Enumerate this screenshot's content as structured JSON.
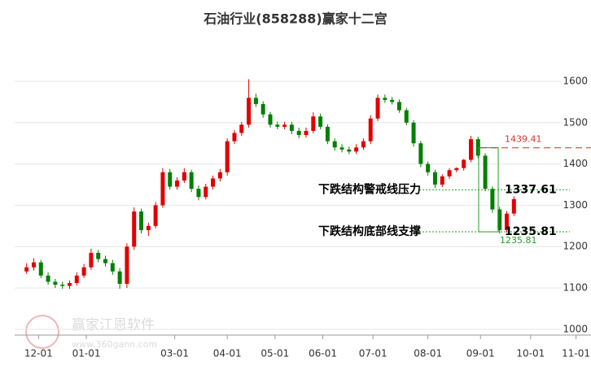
{
  "chart_data": {
    "type": "candlestick",
    "title": "石油行业(858288)赢家十二宫",
    "x": [
      0,
      3,
      6,
      9,
      12,
      15,
      18,
      21,
      24,
      27,
      30,
      33,
      36,
      39,
      42,
      45,
      48,
      51,
      54,
      57,
      60,
      63,
      66,
      69,
      72,
      75,
      78,
      81,
      84,
      87,
      90,
      93,
      96,
      99,
      102,
      105,
      108,
      111,
      114,
      117,
      120,
      123,
      126,
      129,
      132,
      135,
      138,
      141,
      144,
      147,
      150,
      153,
      156,
      159,
      162,
      165,
      168,
      171,
      174,
      177,
      180,
      183,
      186,
      189,
      192,
      195,
      198,
      201,
      204
    ],
    "open": [
      1140,
      1150,
      1162,
      1130,
      1115,
      1108,
      1105,
      1112,
      1130,
      1150,
      1185,
      1170,
      1160,
      1140,
      1110,
      1200,
      1285,
      1240,
      1250,
      1300,
      1380,
      1345,
      1360,
      1380,
      1340,
      1320,
      1345,
      1365,
      1380,
      1455,
      1475,
      1495,
      1560,
      1545,
      1520,
      1495,
      1490,
      1495,
      1480,
      1470,
      1480,
      1515,
      1490,
      1455,
      1440,
      1435,
      1430,
      1440,
      1455,
      1510,
      1560,
      1555,
      1550,
      1530,
      1500,
      1450,
      1400,
      1380,
      1350,
      1370,
      1385,
      1390,
      1410,
      1460,
      1420,
      1340,
      1290,
      1240,
      1280
    ],
    "high": [
      1160,
      1172,
      1168,
      1138,
      1122,
      1115,
      1118,
      1138,
      1158,
      1195,
      1192,
      1178,
      1168,
      1148,
      1208,
      1295,
      1292,
      1258,
      1308,
      1390,
      1388,
      1368,
      1390,
      1386,
      1348,
      1352,
      1372,
      1388,
      1462,
      1482,
      1502,
      1605,
      1570,
      1552,
      1526,
      1502,
      1502,
      1502,
      1488,
      1488,
      1525,
      1522,
      1496,
      1462,
      1448,
      1442,
      1448,
      1462,
      1518,
      1568,
      1568,
      1562,
      1556,
      1536,
      1506,
      1456,
      1406,
      1386,
      1375,
      1390,
      1392,
      1412,
      1468,
      1466,
      1426,
      1346,
      1296,
      1286,
      1322
    ],
    "low": [
      1134,
      1142,
      1124,
      1108,
      1100,
      1098,
      1098,
      1106,
      1124,
      1144,
      1162,
      1152,
      1132,
      1098,
      1100,
      1192,
      1232,
      1226,
      1244,
      1294,
      1338,
      1338,
      1354,
      1332,
      1312,
      1314,
      1338,
      1358,
      1372,
      1448,
      1468,
      1488,
      1538,
      1512,
      1488,
      1484,
      1484,
      1472,
      1462,
      1464,
      1474,
      1484,
      1448,
      1432,
      1428,
      1424,
      1424,
      1434,
      1448,
      1504,
      1548,
      1544,
      1524,
      1494,
      1442,
      1392,
      1372,
      1342,
      1344,
      1364,
      1380,
      1384,
      1404,
      1414,
      1334,
      1282,
      1232,
      1234,
      1274
    ],
    "close": [
      1150,
      1162,
      1130,
      1115,
      1108,
      1105,
      1112,
      1130,
      1150,
      1185,
      1170,
      1160,
      1140,
      1110,
      1200,
      1285,
      1240,
      1250,
      1300,
      1380,
      1345,
      1360,
      1380,
      1340,
      1320,
      1345,
      1365,
      1380,
      1455,
      1475,
      1495,
      1560,
      1545,
      1520,
      1495,
      1490,
      1495,
      1480,
      1470,
      1480,
      1515,
      1490,
      1455,
      1440,
      1435,
      1430,
      1440,
      1455,
      1510,
      1560,
      1555,
      1550,
      1530,
      1500,
      1450,
      1400,
      1380,
      1350,
      1370,
      1385,
      1390,
      1410,
      1460,
      1420,
      1340,
      1290,
      1240,
      1280,
      1315
    ],
    "up_color": "#e00000",
    "down_color": "#008000",
    "xlim": [
      -5,
      224
    ],
    "xticks": [
      {
        "value": 5,
        "label": "12-01"
      },
      {
        "value": 25,
        "label": "01-01"
      },
      {
        "value": 62,
        "label": "03-01"
      },
      {
        "value": 84,
        "label": "04-01"
      },
      {
        "value": 104,
        "label": "05-01"
      },
      {
        "value": 124,
        "label": "06-01"
      },
      {
        "value": 145,
        "label": "07-01"
      },
      {
        "value": 168,
        "label": "08-01"
      },
      {
        "value": 190,
        "label": "09-01"
      },
      {
        "value": 211,
        "label": "10-01"
      },
      {
        "value": 230,
        "label": "11-01"
      }
    ],
    "ylim": [
      986,
      1718
    ],
    "yticks": [
      1000,
      1100,
      1200,
      1300,
      1400,
      1500,
      1600
    ],
    "grid": true,
    "high_line": 1439.41,
    "resistance": {
      "text": "下跌结构警戒线压力",
      "value": 1337.61
    },
    "support": {
      "text": "下跌结构底部线支撑",
      "value": 1235.81
    },
    "low_mark": 1235.81,
    "watermark": {
      "name": "赢家江恩软件",
      "url": "www.360gann.com"
    }
  }
}
